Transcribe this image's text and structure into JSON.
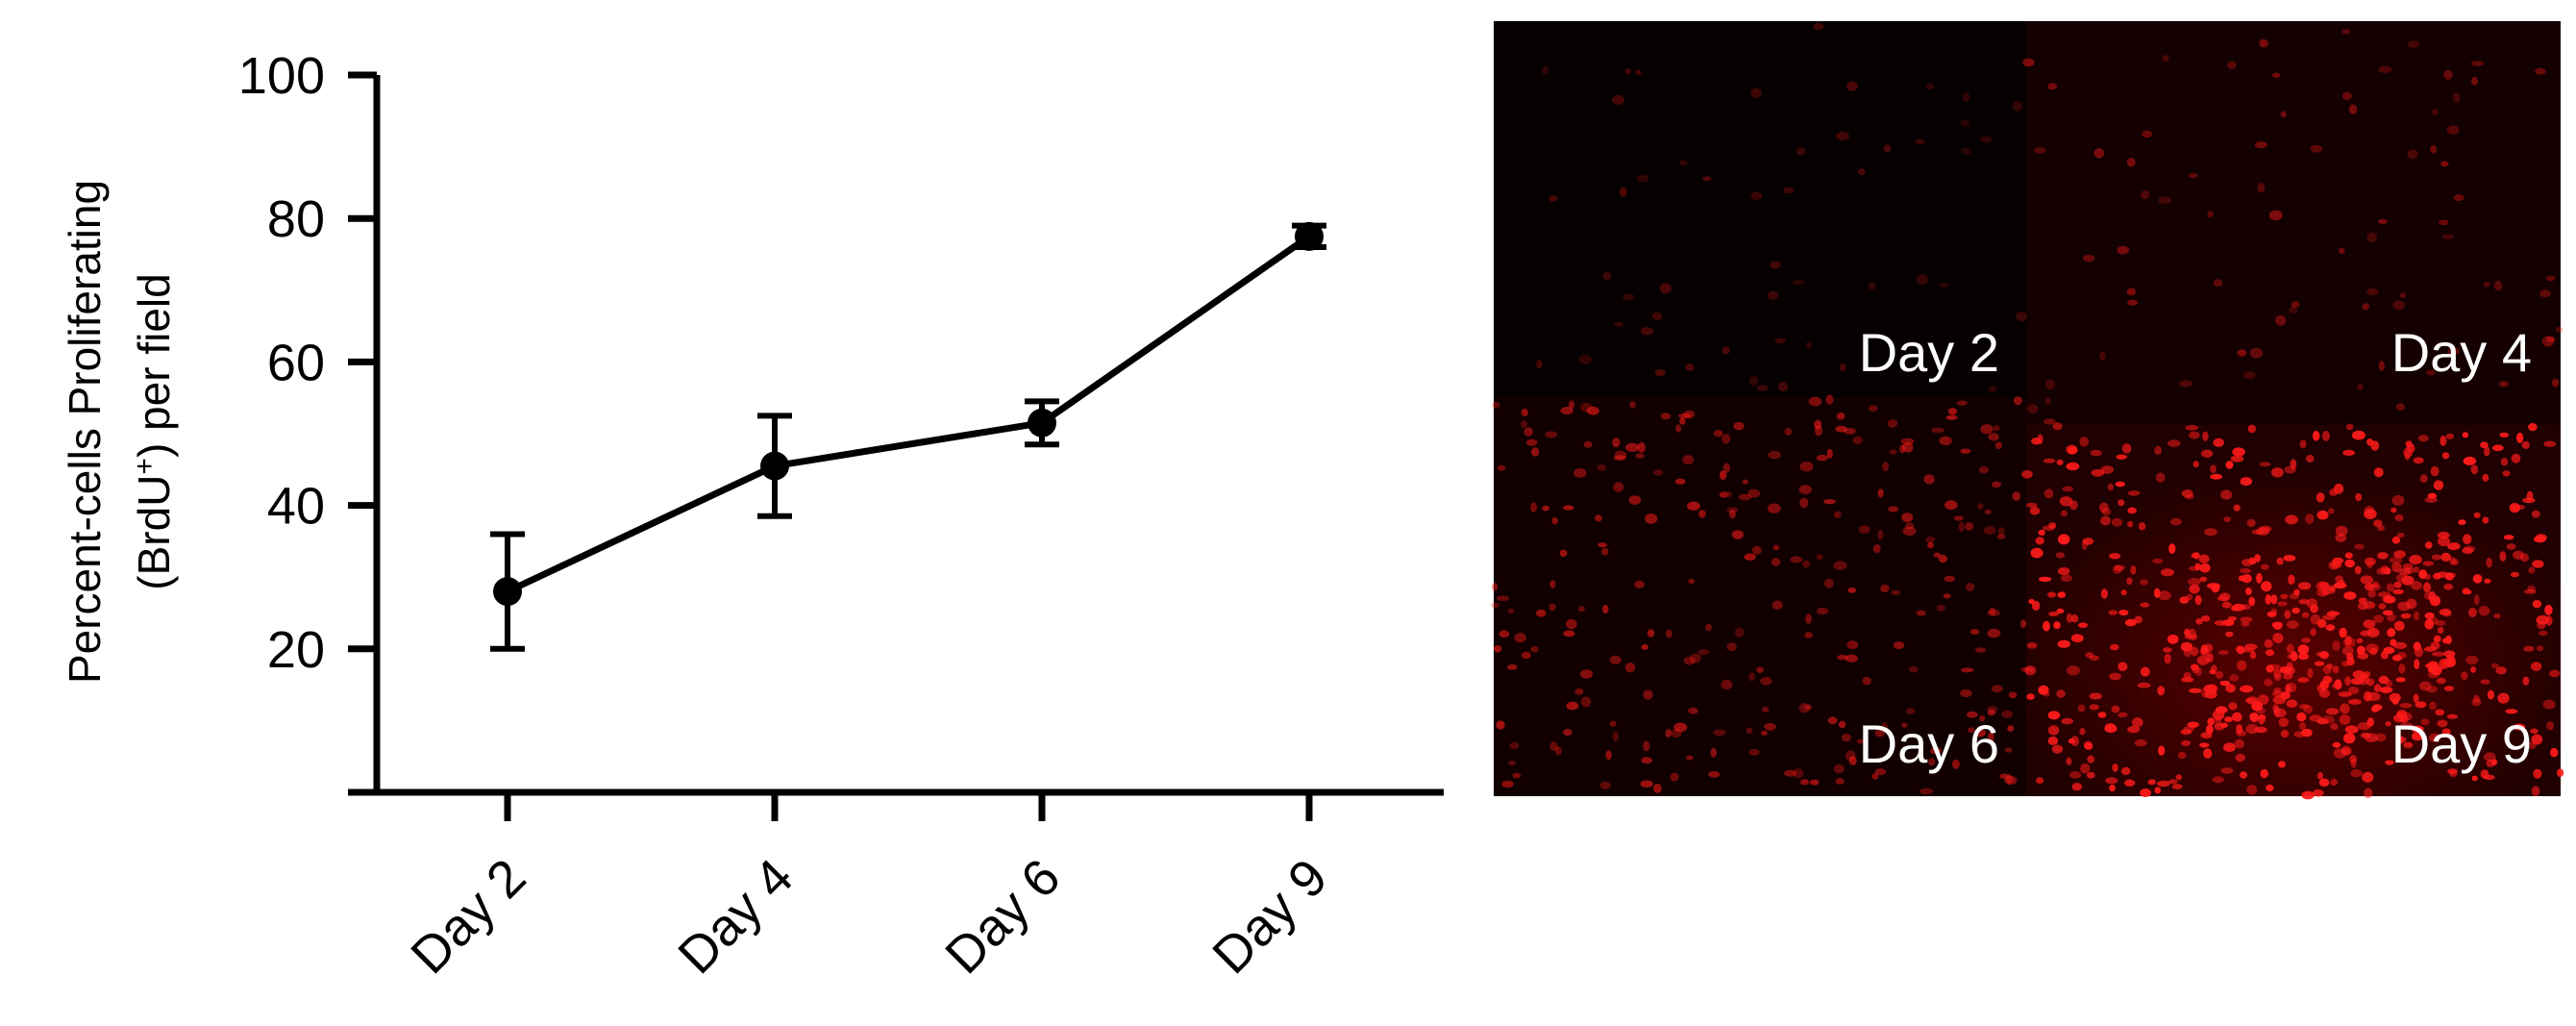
{
  "chart_data": {
    "type": "line",
    "categories": [
      "Day 2",
      "Day 4",
      "Day 6",
      "Day 9"
    ],
    "series": [
      {
        "values": [
          28,
          45.5,
          51.5,
          77.5
        ],
        "errors": [
          8,
          7,
          3,
          1.5
        ]
      }
    ],
    "ylabel_line1": "Percent-cells Proliferating",
    "ylabel_line2_pre": "(BrdU",
    "ylabel_line2_sup": "+",
    "ylabel_line2_post": ") per field",
    "ylim": [
      0,
      100
    ],
    "yticks": [
      20,
      40,
      60,
      80,
      100
    ],
    "yticklabels": [
      "20",
      "40",
      "60",
      "80",
      "100"
    ],
    "grid": false,
    "line_color": "#000000",
    "marker": "filled-circle"
  },
  "micrograph_panel": {
    "tiles": [
      {
        "label": "Day 2",
        "brightness": 0.3
      },
      {
        "label": "Day 4",
        "brightness": 0.45
      },
      {
        "label": "Day 6",
        "brightness": 0.6
      },
      {
        "label": "Day 9",
        "brightness": 1.0
      }
    ],
    "stain_color": "#ff1a1a",
    "background_color": "#0a0000"
  }
}
